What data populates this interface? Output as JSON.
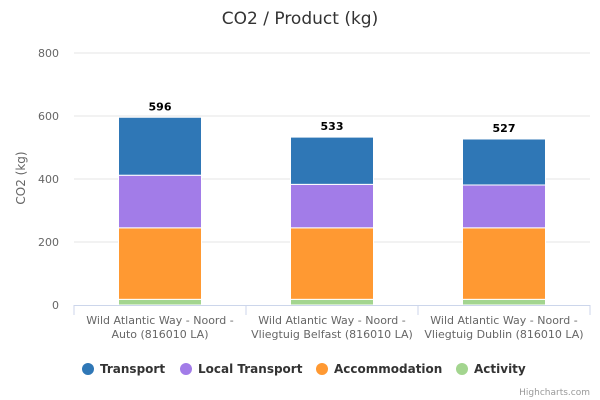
{
  "chart_data": {
    "type": "bar",
    "stacked": true,
    "title": "CO2  /  Product (kg)",
    "xlabel": "",
    "ylabel": "CO2 (kg)",
    "ylim": [
      0,
      800
    ],
    "yticks": [
      0,
      200,
      400,
      600,
      800
    ],
    "grid": true,
    "legend_position": "bottom",
    "categories": [
      [
        "Wild Atlantic Way - Noord -",
        "Auto (816010 LA)"
      ],
      [
        "Wild Atlantic Way - Noord -",
        "Vliegtuig Belfast (816010 LA)"
      ],
      [
        "Wild Atlantic Way - Noord -",
        "Vliegtuig Dublin (816010 LA)"
      ]
    ],
    "series": [
      {
        "name": "Transport",
        "color": "#2f77b6",
        "values": [
          184,
          150,
          146
        ]
      },
      {
        "name": "Local Transport",
        "color": "#a27ce8",
        "values": [
          167,
          138,
          136
        ]
      },
      {
        "name": "Accommodation",
        "color": "#ff9932",
        "values": [
          227,
          227,
          227
        ]
      },
      {
        "name": "Activity",
        "color": "#a3d58f",
        "values": [
          18,
          18,
          18
        ]
      }
    ],
    "totals": [
      596,
      533,
      527
    ],
    "legend_order": [
      "Transport",
      "Local Transport",
      "Accommodation",
      "Activity"
    ],
    "credits": "Highcharts.com"
  }
}
